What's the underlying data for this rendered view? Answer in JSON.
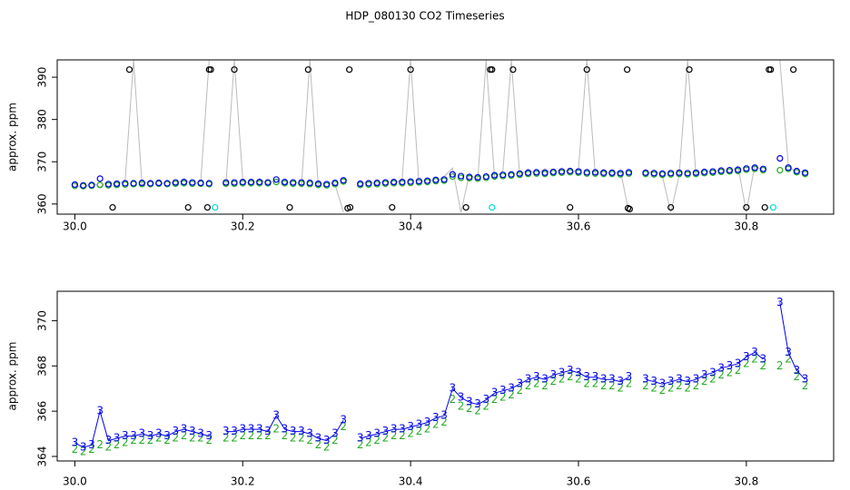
{
  "chart_data": [
    {
      "type": "line",
      "title": "HDP_080130  CO2 Timeseries",
      "ylabel": "approx. ppm",
      "xlim": [
        29.979,
        30.904
      ],
      "ylim": [
        357.6,
        394.1
      ],
      "xticks": [
        {
          "value": 30,
          "label": "30.0"
        },
        30.2,
        30.4,
        30.6,
        30.8
      ],
      "yticks": [
        360,
        370,
        380,
        390
      ],
      "x": [
        30.0,
        30.01,
        30.02,
        30.03,
        30.04,
        30.05,
        30.06,
        30.07,
        30.08,
        30.09,
        30.1,
        30.11,
        30.12,
        30.13,
        30.14,
        30.15,
        30.16,
        30.17,
        30.18,
        30.19,
        30.2,
        30.21,
        30.22,
        30.23,
        30.24,
        30.25,
        30.26,
        30.27,
        30.28,
        30.29,
        30.3,
        30.31,
        30.32,
        30.33,
        30.34,
        30.35,
        30.36,
        30.37,
        30.38,
        30.39,
        30.4,
        30.41,
        30.42,
        30.43,
        30.44,
        30.45,
        30.46,
        30.47,
        30.48,
        30.49,
        30.5,
        30.51,
        30.52,
        30.53,
        30.54,
        30.55,
        30.56,
        30.57,
        30.58,
        30.59,
        30.6,
        30.61,
        30.62,
        30.63,
        30.64,
        30.65,
        30.66,
        30.67,
        30.68,
        30.69,
        30.7,
        30.71,
        30.72,
        30.73,
        30.74,
        30.75,
        30.76,
        30.77,
        30.78,
        30.79,
        30.8,
        30.81,
        30.82,
        30.83,
        30.84,
        30.85,
        30.86,
        30.87
      ],
      "series": [
        {
          "color": "#bbbbbb",
          "line": true,
          "values": [
            364.8,
            363.5,
            365.2,
            364.0,
            365.5,
            364.2,
            365.8,
            394,
            364.5,
            365.6,
            364.3,
            365.5,
            364.6,
            366.0,
            364.4,
            365.5,
            394,
            null,
            364.6,
            394,
            365.8,
            364.5,
            366.0,
            364.7,
            365.9,
            364.6,
            365.7,
            364.4,
            394,
            364.2,
            365.3,
            364.6,
            358,
            null,
            364.3,
            365.6,
            364.4,
            365.8,
            364.6,
            366.0,
            394,
            364.8,
            366.1,
            365.1,
            366.5,
            368.5,
            358,
            367.0,
            365.8,
            394,
            366.2,
            367.8,
            394,
            366.7,
            368.3,
            366.9,
            368.4,
            366.9,
            368.5,
            367.2,
            368.3,
            394,
            366.9,
            368.2,
            366.7,
            368.0,
            358,
            null,
            366.8,
            368.1,
            366.6,
            358,
            366.8,
            394,
            366.8,
            368.3,
            367.0,
            368.6,
            367.3,
            369.0,
            358,
            369.3,
            367.7,
            null,
            394,
            369.2,
            367.2,
            368.0
          ]
        },
        {
          "color": "#22aa22",
          "points": true,
          "values": [
            364.3,
            364.2,
            364.3,
            364.5,
            364.4,
            364.5,
            364.6,
            364.7,
            364.7,
            364.7,
            364.8,
            364.7,
            364.8,
            364.9,
            364.8,
            364.8,
            364.7,
            null,
            364.8,
            364.8,
            364.9,
            364.9,
            364.9,
            364.9,
            365.2,
            364.9,
            364.8,
            364.8,
            364.7,
            364.5,
            364.4,
            364.7,
            365.3,
            null,
            364.5,
            364.6,
            364.7,
            364.8,
            364.9,
            364.9,
            365.0,
            365.1,
            365.2,
            365.4,
            365.5,
            366.5,
            366.2,
            366.1,
            366.0,
            366.2,
            366.5,
            366.6,
            366.7,
            366.9,
            367.1,
            367.2,
            367.1,
            367.3,
            367.4,
            367.5,
            367.4,
            367.2,
            367.2,
            367.1,
            367.1,
            367.0,
            367.2,
            null,
            367.1,
            367.0,
            366.9,
            367.0,
            367.1,
            367.0,
            367.1,
            367.3,
            367.4,
            367.6,
            367.7,
            367.8,
            368.1,
            368.3,
            368.0,
            null,
            368.0,
            368.3,
            367.5,
            367.1
          ]
        },
        {
          "color": "#0000ee",
          "points": true,
          "values": [
            364.6,
            364.4,
            364.5,
            366.0,
            364.7,
            364.8,
            364.9,
            364.9,
            365.0,
            364.9,
            365.0,
            364.9,
            365.1,
            365.2,
            365.1,
            365.0,
            364.9,
            null,
            365.1,
            365.1,
            365.2,
            365.2,
            365.2,
            365.1,
            365.8,
            365.2,
            365.1,
            365.1,
            365.0,
            364.8,
            364.7,
            365.0,
            365.6,
            null,
            364.8,
            364.9,
            365.0,
            365.1,
            365.2,
            365.2,
            365.3,
            365.4,
            365.5,
            365.7,
            365.8,
            367.0,
            366.6,
            366.4,
            366.3,
            366.5,
            366.8,
            366.9,
            367.0,
            367.2,
            367.4,
            367.5,
            367.4,
            367.6,
            367.7,
            367.8,
            367.7,
            367.5,
            367.5,
            367.4,
            367.4,
            367.3,
            367.5,
            null,
            367.4,
            367.3,
            367.2,
            367.3,
            367.4,
            367.3,
            367.4,
            367.6,
            367.7,
            367.9,
            368.0,
            368.1,
            368.4,
            368.6,
            368.3,
            null,
            370.8,
            368.6,
            367.8,
            367.4
          ]
        },
        {
          "color": "#000000",
          "points": true,
          "x": [
            30.065,
            30.16,
            30.162,
            30.19,
            30.278,
            30.327,
            30.4,
            30.495,
            30.497,
            30.522,
            30.61,
            30.658,
            30.732,
            30.827,
            30.829,
            30.856,
            30.045,
            30.135,
            30.158,
            30.256,
            30.325,
            30.328,
            30.378,
            30.466,
            30.59,
            30.659,
            30.661,
            30.71,
            30.8,
            30.822
          ],
          "values": [
            391.8,
            391.8,
            391.8,
            391.8,
            391.8,
            391.8,
            391.8,
            391.8,
            391.8,
            391.8,
            391.8,
            391.8,
            391.8,
            391.8,
            391.8,
            391.8,
            359.2,
            359.2,
            359.2,
            359.2,
            359.0,
            359.2,
            359.2,
            359.2,
            359.2,
            359.0,
            358.8,
            359.2,
            359.2,
            359.2
          ]
        },
        {
          "color": "#00dddd",
          "points": true,
          "x": [
            30.167,
            30.497,
            30.832
          ],
          "values": [
            359.2,
            359.2,
            359.2
          ]
        }
      ]
    },
    {
      "type": "line",
      "ylabel": "approx. ppm",
      "xlim": [
        29.979,
        30.904
      ],
      "ylim": [
        363.8,
        371.3
      ],
      "xticks": [
        {
          "value": 30,
          "label": "30.0"
        },
        30.2,
        30.4,
        30.6,
        30.8
      ],
      "yticks": [
        364,
        366,
        368,
        370
      ],
      "x": [
        30.0,
        30.01,
        30.02,
        30.03,
        30.04,
        30.05,
        30.06,
        30.07,
        30.08,
        30.09,
        30.1,
        30.11,
        30.12,
        30.13,
        30.14,
        30.15,
        30.16,
        30.17,
        30.18,
        30.19,
        30.2,
        30.21,
        30.22,
        30.23,
        30.24,
        30.25,
        30.26,
        30.27,
        30.28,
        30.29,
        30.3,
        30.31,
        30.32,
        30.33,
        30.34,
        30.35,
        30.36,
        30.37,
        30.38,
        30.39,
        30.4,
        30.41,
        30.42,
        30.43,
        30.44,
        30.45,
        30.46,
        30.47,
        30.48,
        30.49,
        30.5,
        30.51,
        30.52,
        30.53,
        30.54,
        30.55,
        30.56,
        30.57,
        30.58,
        30.59,
        30.6,
        30.61,
        30.62,
        30.63,
        30.64,
        30.65,
        30.66,
        30.67,
        30.68,
        30.69,
        30.7,
        30.71,
        30.72,
        30.73,
        30.74,
        30.75,
        30.76,
        30.77,
        30.78,
        30.79,
        30.8,
        30.81,
        30.82,
        30.83,
        30.84,
        30.85,
        30.86,
        30.87
      ],
      "series": [
        {
          "color": "#22aa22",
          "points": true,
          "marker": "2",
          "values": [
            364.3,
            364.2,
            364.3,
            364.5,
            364.4,
            364.5,
            364.6,
            364.7,
            364.7,
            364.7,
            364.8,
            364.7,
            364.8,
            364.9,
            364.8,
            364.8,
            364.7,
            null,
            364.8,
            364.8,
            364.9,
            364.9,
            364.9,
            364.9,
            365.2,
            364.9,
            364.8,
            364.8,
            364.7,
            364.5,
            364.4,
            364.7,
            365.3,
            null,
            364.5,
            364.6,
            364.7,
            364.8,
            364.9,
            364.9,
            365.0,
            365.1,
            365.2,
            365.4,
            365.5,
            366.5,
            366.2,
            366.1,
            366.0,
            366.2,
            366.5,
            366.6,
            366.7,
            366.9,
            367.1,
            367.2,
            367.1,
            367.3,
            367.4,
            367.5,
            367.4,
            367.2,
            367.2,
            367.1,
            367.1,
            367.0,
            367.2,
            null,
            367.1,
            367.0,
            366.9,
            367.0,
            367.1,
            367.0,
            367.1,
            367.3,
            367.4,
            367.6,
            367.7,
            367.8,
            368.1,
            368.3,
            368.0,
            null,
            368.0,
            368.3,
            367.5,
            367.1
          ]
        },
        {
          "color": "#0000ee",
          "line": true,
          "points": true,
          "marker": "3",
          "values": [
            364.6,
            364.4,
            364.5,
            366.0,
            364.7,
            364.8,
            364.9,
            364.9,
            365.0,
            364.9,
            365.0,
            364.9,
            365.1,
            365.2,
            365.1,
            365.0,
            364.9,
            null,
            365.1,
            365.1,
            365.2,
            365.2,
            365.2,
            365.1,
            365.8,
            365.2,
            365.1,
            365.1,
            365.0,
            364.8,
            364.7,
            365.0,
            365.6,
            null,
            364.8,
            364.9,
            365.0,
            365.1,
            365.2,
            365.2,
            365.3,
            365.4,
            365.5,
            365.7,
            365.8,
            367.0,
            366.6,
            366.4,
            366.3,
            366.5,
            366.8,
            366.9,
            367.0,
            367.2,
            367.4,
            367.5,
            367.4,
            367.6,
            367.7,
            367.8,
            367.7,
            367.5,
            367.5,
            367.4,
            367.4,
            367.3,
            367.5,
            null,
            367.4,
            367.3,
            367.2,
            367.3,
            367.4,
            367.3,
            367.4,
            367.6,
            367.7,
            367.9,
            368.0,
            368.1,
            368.4,
            368.6,
            368.3,
            null,
            370.8,
            368.6,
            367.8,
            367.4
          ]
        }
      ]
    }
  ]
}
